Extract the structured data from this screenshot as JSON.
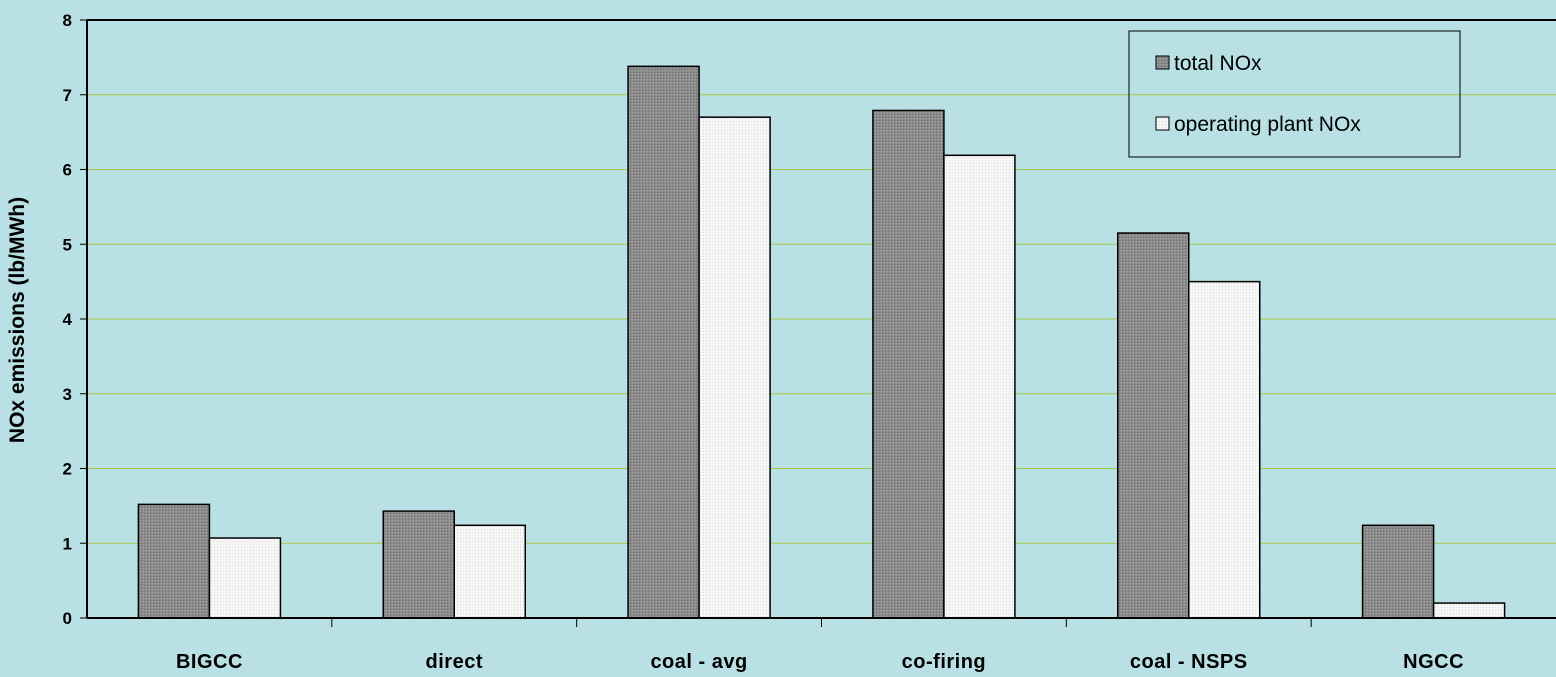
{
  "colors": {
    "background": "#b9e0e4",
    "gridline": "#a8c84a",
    "total_bar": "#8c8c8c",
    "operating_bar": "#f4f4f4",
    "axis": "#000000"
  },
  "chart_data": {
    "type": "bar",
    "title": "",
    "xlabel": "",
    "ylabel": "NOx emissions (lb/MWh)",
    "ylim": [
      0,
      8
    ],
    "yticks": [
      0,
      1,
      2,
      3,
      4,
      5,
      6,
      7,
      8
    ],
    "grid": true,
    "legend_position": "top-right",
    "categories": [
      "BIGCC",
      "direct",
      "coal - avg",
      "co-firing",
      "coal - NSPS",
      "NGCC"
    ],
    "series": [
      {
        "name": "total NOx",
        "values": [
          1.52,
          1.43,
          7.38,
          6.79,
          5.15,
          1.24
        ]
      },
      {
        "name": "operating plant NOx",
        "values": [
          1.07,
          1.24,
          6.7,
          6.19,
          4.5,
          0.2
        ]
      }
    ]
  }
}
